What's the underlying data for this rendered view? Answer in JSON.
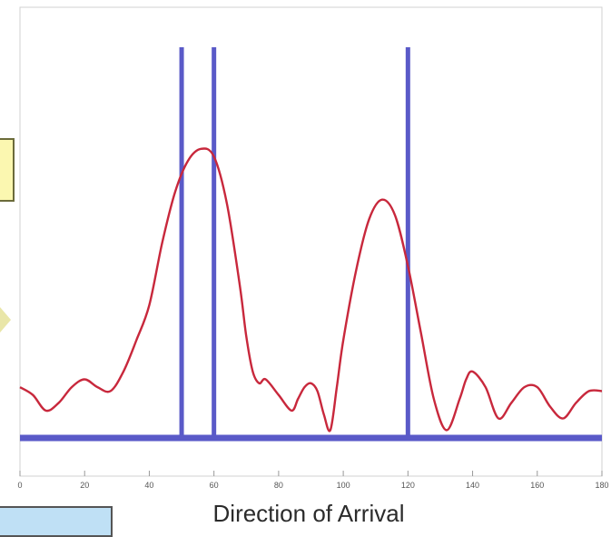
{
  "chart_data": {
    "type": "line",
    "xlabel": "Direction of Arrival",
    "ylabel": "",
    "title": "",
    "xlim": [
      0,
      180
    ],
    "ylim": [
      0,
      1
    ],
    "x_ticks": [
      0,
      20,
      40,
      60,
      80,
      100,
      120,
      140,
      160,
      180
    ],
    "x_tick_labels": [
      "0",
      "20",
      "40",
      "60",
      "80",
      "100",
      "120",
      "140",
      "160",
      "180"
    ],
    "grid": false,
    "series": [
      {
        "kind": "curve",
        "color": "#c8283c",
        "x": [
          0,
          4,
          8,
          12,
          16,
          20,
          24,
          28,
          32,
          36,
          40,
          44,
          48,
          52,
          56,
          60,
          64,
          68,
          70,
          72,
          74,
          76,
          80,
          84,
          86,
          88,
          90,
          92,
          94,
          96,
          98,
          100,
          104,
          108,
          112,
          116,
          120,
          124,
          128,
          132,
          136,
          138,
          140,
          144,
          148,
          152,
          156,
          160,
          164,
          168,
          172,
          176,
          180
        ],
        "y": [
          0.13,
          0.11,
          0.07,
          0.09,
          0.13,
          0.15,
          0.13,
          0.12,
          0.17,
          0.25,
          0.34,
          0.5,
          0.63,
          0.71,
          0.74,
          0.72,
          0.6,
          0.39,
          0.26,
          0.17,
          0.14,
          0.15,
          0.11,
          0.07,
          0.1,
          0.13,
          0.14,
          0.12,
          0.06,
          0.02,
          0.13,
          0.25,
          0.43,
          0.56,
          0.61,
          0.57,
          0.44,
          0.27,
          0.1,
          0.02,
          0.1,
          0.15,
          0.17,
          0.13,
          0.05,
          0.09,
          0.13,
          0.13,
          0.08,
          0.05,
          0.09,
          0.12,
          0.12
        ]
      },
      {
        "kind": "stems",
        "color": "#5a5ac8",
        "x": [
          50,
          60,
          120
        ],
        "y": [
          1.0,
          1.0,
          1.0
        ]
      }
    ],
    "baseline_color": "#5a5ac8",
    "frame_color": "#d0d0d0"
  },
  "callouts": {
    "yellow_fill": "#fbf7b0",
    "blue_fill": "#bfe0f5"
  }
}
